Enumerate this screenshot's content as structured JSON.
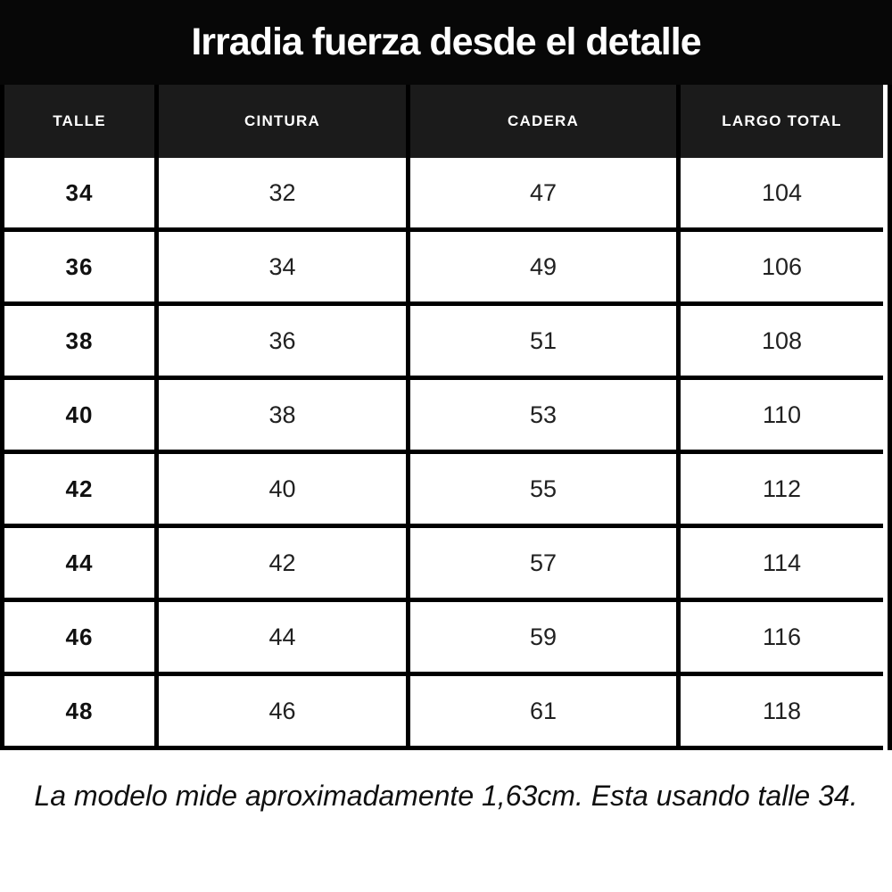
{
  "title": "Irradia fuerza desde el detalle",
  "table": {
    "columns": [
      "TALLE",
      "CINTURA",
      "CADERA",
      "LARGO TOTAL"
    ],
    "rows": [
      [
        "34",
        "32",
        "47",
        "104"
      ],
      [
        "36",
        "34",
        "49",
        "106"
      ],
      [
        "38",
        "36",
        "51",
        "108"
      ],
      [
        "40",
        "38",
        "53",
        "110"
      ],
      [
        "42",
        "40",
        "55",
        "112"
      ],
      [
        "44",
        "42",
        "57",
        "114"
      ],
      [
        "46",
        "44",
        "59",
        "116"
      ],
      [
        "48",
        "46",
        "61",
        "118"
      ]
    ]
  },
  "footer_note": "La modelo mide aproximadamente 1,63cm. Esta usando talle 34.",
  "colors": {
    "title_bar_bg": "#070707",
    "header_cell_bg": "#1b1b1b",
    "grid_border": "#000000",
    "cell_bg": "#ffffff",
    "title_text": "#ffffff",
    "body_text": "#212121"
  }
}
